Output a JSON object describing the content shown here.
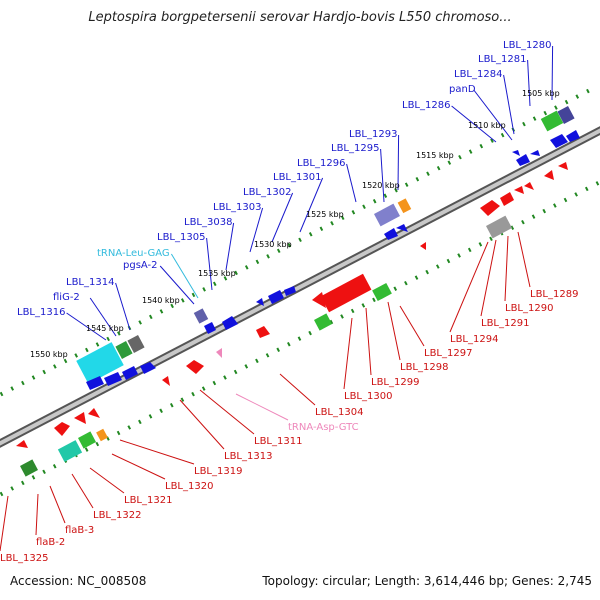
{
  "title": "Leptospira borgpetersenii serovar Hardjo-bovis L550 chromoso...",
  "footer": {
    "accession": "Accession: NC_008508",
    "summary": "Topology: circular; Length: 3,614,446 bp; Genes: 2,745"
  },
  "colors": {
    "forward_label": "#1a1acc",
    "reverse_label": "#cc1111",
    "trna_forward": "#33bbdd",
    "trna_reverse": "#ee88bb",
    "backbone": "#888888",
    "tick": "#228822"
  },
  "scale_labels": [
    "1505 kbp",
    "1510 kbp",
    "1515 kbp",
    "1520 kbp",
    "1525 kbp",
    "1530 kbp",
    "1535 kbp",
    "1540 kbp",
    "1545 kbp",
    "1550 kbp"
  ],
  "forward_genes": [
    "LBL_1280",
    "LBL_1281",
    "LBL_1284",
    "panD",
    "LBL_1286",
    "LBL_1293",
    "LBL_1295",
    "LBL_1296",
    "LBL_1301",
    "LBL_1302",
    "LBL_1303",
    "LBL_3038",
    "LBL_1305",
    "tRNA-Leu-GAG",
    "pgsA-2",
    "LBL_1314",
    "fliG-2",
    "LBL_1316"
  ],
  "reverse_genes": [
    "LBL_1289",
    "LBL_1290",
    "LBL_1291",
    "LBL_1294",
    "LBL_1297",
    "LBL_1298",
    "LBL_1299",
    "LBL_1300",
    "LBL_1304",
    "tRNA-Asp-GTC",
    "LBL_1311",
    "LBL_1313",
    "LBL_1319",
    "LBL_1320",
    "LBL_1321",
    "LBL_1322",
    "flaB-3",
    "flaB-2",
    "LBL_1325"
  ]
}
